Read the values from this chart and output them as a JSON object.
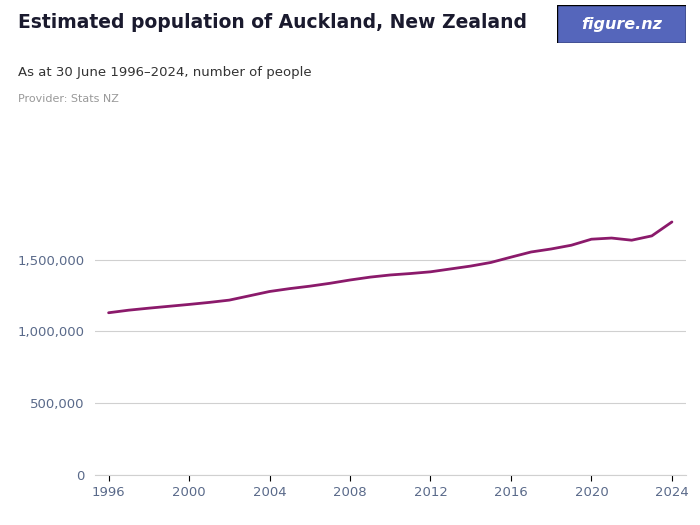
{
  "title": "Estimated population of Auckland, New Zealand",
  "subtitle": "As at 30 June 1996–2024, number of people",
  "provider": "Provider: Stats NZ",
  "line_color": "#8B1A6B",
  "background_color": "#ffffff",
  "years": [
    1996,
    1997,
    1998,
    1999,
    2000,
    2001,
    2002,
    2003,
    2004,
    2005,
    2006,
    2007,
    2008,
    2009,
    2010,
    2011,
    2012,
    2013,
    2014,
    2015,
    2016,
    2017,
    2018,
    2019,
    2020,
    2021,
    2022,
    2023,
    2024
  ],
  "population": [
    1130000,
    1148000,
    1162000,
    1175000,
    1188000,
    1202000,
    1218000,
    1248000,
    1278000,
    1298000,
    1315000,
    1335000,
    1358000,
    1378000,
    1393000,
    1403000,
    1415000,
    1435000,
    1455000,
    1480000,
    1517000,
    1553000,
    1574000,
    1600000,
    1642000,
    1650000,
    1635000,
    1665000,
    1762000
  ],
  "yticks": [
    0,
    500000,
    1000000,
    1500000
  ],
  "ylim": [
    0,
    1900000
  ],
  "xticks": [
    1996,
    2000,
    2004,
    2008,
    2012,
    2016,
    2020,
    2024
  ],
  "xlim": [
    1995.3,
    2024.7
  ],
  "grid_color": "#d0d0d0",
  "tick_color": "#5a6a8a",
  "title_color": "#1a1a2e",
  "subtitle_color": "#333333",
  "provider_color": "#999999",
  "logo_bg_color": "#5566bb",
  "logo_text": "figure.nz"
}
